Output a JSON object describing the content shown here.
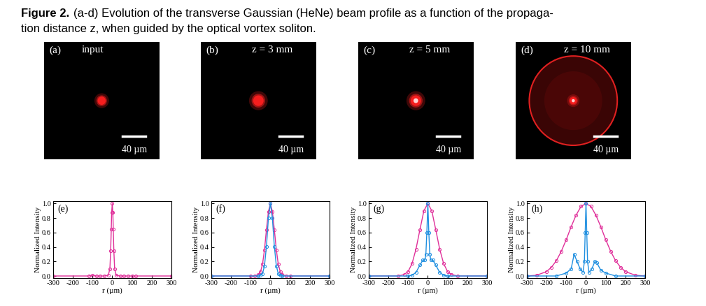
{
  "caption": {
    "label": "Figure 2.",
    "lines": [
      "(a-d) Evolution of the transverse Gaussian (HeNe) beam profile as a function of the propaga-",
      "tion distance z, when guided by the optical vortex soliton."
    ]
  },
  "images": [
    {
      "label": "(a)",
      "caption": "input",
      "scale_bar": "40 µm"
    },
    {
      "label": "(b)",
      "caption": "z = 3 mm",
      "scale_bar": "40 µm"
    },
    {
      "label": "(c)",
      "caption": "z = 5 mm",
      "scale_bar": "40 µm"
    },
    {
      "label": "(d)",
      "caption": "z = 10 mm",
      "scale_bar": "40 µm"
    }
  ],
  "chart_data": [
    {
      "type": "line",
      "label": "(e)",
      "x_label": "r (µm)",
      "y_label": "Normalized Intensity",
      "xlim": [
        -300,
        300
      ],
      "xticks": [
        -300,
        -200,
        -100,
        0,
        100,
        200,
        300
      ],
      "ylim": [
        -0.03,
        1.03
      ],
      "yticks": [
        {
          "value": 0.0,
          "label": "0.0"
        },
        {
          "value": 0.2,
          "label": "0.2"
        },
        {
          "value": 0.4,
          "label": "0.4"
        },
        {
          "value": 0.6,
          "label": "0.6"
        },
        {
          "value": 0.8,
          "label": "0.8"
        },
        {
          "value": 1.0,
          "label": "1.0"
        }
      ],
      "series": [
        {
          "color": "#e0309a",
          "marker": "o",
          "line_style": "solid",
          "x": [
            -300,
            -120,
            -100,
            -80,
            -60,
            -40,
            -20,
            -12,
            -8,
            -5,
            -3,
            0,
            3,
            5,
            8,
            12,
            20,
            40,
            60,
            80,
            100,
            120,
            300
          ],
          "values": [
            0,
            0,
            0.01,
            0,
            0,
            0,
            0.01,
            0.1,
            0.35,
            0.65,
            0.88,
            1.0,
            0.88,
            0.65,
            0.35,
            0.1,
            0.01,
            0,
            0,
            0,
            0,
            0,
            0
          ]
        }
      ]
    },
    {
      "type": "line",
      "label": "(f)",
      "x_label": "r (µm)",
      "y_label": "Normalized Intensity",
      "xlim": [
        -300,
        300
      ],
      "xticks": [
        -300,
        -200,
        -100,
        0,
        100,
        200,
        300
      ],
      "ylim": [
        -0.03,
        1.03
      ],
      "yticks": [
        {
          "value": 0.0,
          "label": "0.0"
        },
        {
          "value": 0.2,
          "label": "0.2"
        },
        {
          "value": 0.4,
          "label": "0.4"
        },
        {
          "value": 0.6,
          "label": "0.6"
        },
        {
          "value": 0.8,
          "label": "0.8"
        },
        {
          "value": 1.0,
          "label": "1.0"
        }
      ],
      "series": [
        {
          "color": "#e0309a",
          "marker": "o",
          "line_style": "solid",
          "x": [
            -300,
            -100,
            -80,
            -60,
            -50,
            -40,
            -30,
            -20,
            -10,
            0,
            10,
            20,
            30,
            40,
            50,
            60,
            80,
            100,
            300
          ],
          "values": [
            0,
            0,
            0,
            0.02,
            0.06,
            0.16,
            0.36,
            0.64,
            0.89,
            1.0,
            0.89,
            0.64,
            0.36,
            0.16,
            0.06,
            0.02,
            0,
            0,
            0
          ]
        },
        {
          "color": "#1f8fe0",
          "marker": "o",
          "line_style": "solid",
          "x": [
            -300,
            -60,
            -50,
            -40,
            -30,
            -20,
            -10,
            0,
            10,
            20,
            30,
            40,
            50,
            60,
            300
          ],
          "values": [
            0,
            0,
            0.01,
            0.03,
            0.14,
            0.41,
            0.8,
            1.0,
            0.8,
            0.41,
            0.14,
            0.03,
            0.01,
            0,
            0
          ]
        }
      ]
    },
    {
      "type": "line",
      "label": "(g)",
      "x_label": "r (µm)",
      "y_label": "Normalized Intensity",
      "xlim": [
        -300,
        300
      ],
      "xticks": [
        -300,
        -200,
        -100,
        0,
        100,
        200,
        300
      ],
      "ylim": [
        -0.03,
        1.03
      ],
      "yticks": [
        {
          "value": 0.0,
          "label": "0.0"
        },
        {
          "value": 0.2,
          "label": "0.2"
        },
        {
          "value": 0.4,
          "label": "0.4"
        },
        {
          "value": 0.6,
          "label": "0.6"
        },
        {
          "value": 0.8,
          "label": "0.8"
        },
        {
          "value": 1.0,
          "label": "1.0"
        }
      ],
      "series": [
        {
          "color": "#e0309a",
          "marker": "o",
          "line_style": "solid",
          "x": [
            -300,
            -150,
            -120,
            -100,
            -80,
            -60,
            -40,
            -20,
            0,
            20,
            40,
            60,
            80,
            100,
            120,
            150,
            300
          ],
          "values": [
            0,
            0,
            0.02,
            0.06,
            0.17,
            0.37,
            0.64,
            0.9,
            1.0,
            0.9,
            0.64,
            0.37,
            0.17,
            0.06,
            0.02,
            0,
            0
          ]
        },
        {
          "color": "#1f8fe0",
          "marker": "o",
          "line_style": "solid",
          "x": [
            -300,
            -100,
            -80,
            -60,
            -40,
            -25,
            -15,
            -10,
            -5,
            0,
            5,
            10,
            15,
            25,
            40,
            60,
            80,
            100,
            300
          ],
          "values": [
            0,
            0,
            0.01,
            0.05,
            0.15,
            0.22,
            0.22,
            0.3,
            0.6,
            1.0,
            0.6,
            0.3,
            0.22,
            0.22,
            0.15,
            0.05,
            0.01,
            0,
            0
          ]
        }
      ]
    },
    {
      "type": "line",
      "label": "(h)",
      "x_label": "r (µm)",
      "y_label": "Normalized Intensity",
      "xlim": [
        -300,
        300
      ],
      "xticks": [
        -300,
        -200,
        -100,
        0,
        100,
        200,
        300
      ],
      "ylim": [
        -0.03,
        1.03
      ],
      "yticks": [
        {
          "value": 0.0,
          "label": "0.0"
        },
        {
          "value": 0.2,
          "label": "0.2"
        },
        {
          "value": 0.4,
          "label": "0.4"
        },
        {
          "value": 0.6,
          "label": "0.6"
        },
        {
          "value": 0.8,
          "label": "0.8"
        },
        {
          "value": 1.0,
          "label": "1.0"
        }
      ],
      "series": [
        {
          "color": "#e0309a",
          "marker": "o",
          "line_style": "solid",
          "x": [
            -300,
            -250,
            -200,
            -175,
            -150,
            -125,
            -100,
            -75,
            -50,
            -25,
            0,
            25,
            50,
            75,
            100,
            125,
            150,
            175,
            200,
            250,
            300
          ],
          "values": [
            0,
            0.01,
            0.06,
            0.12,
            0.21,
            0.34,
            0.5,
            0.68,
            0.84,
            0.96,
            1.0,
            0.96,
            0.84,
            0.68,
            0.5,
            0.34,
            0.21,
            0.12,
            0.06,
            0.01,
            0
          ]
        },
        {
          "color": "#1f8fe0",
          "marker": "o",
          "line_style": "solid",
          "x": [
            -300,
            -150,
            -100,
            -75,
            -60,
            -45,
            -30,
            -15,
            -8,
            -4,
            0,
            4,
            8,
            15,
            30,
            45,
            55,
            75,
            100,
            150,
            300
          ],
          "values": [
            0,
            0,
            0.04,
            0.1,
            0.3,
            0.2,
            0.1,
            0.05,
            0.2,
            0.6,
            1.0,
            0.6,
            0.2,
            0.05,
            0.1,
            0.2,
            0.18,
            0.08,
            0.04,
            0,
            0
          ]
        }
      ]
    }
  ]
}
